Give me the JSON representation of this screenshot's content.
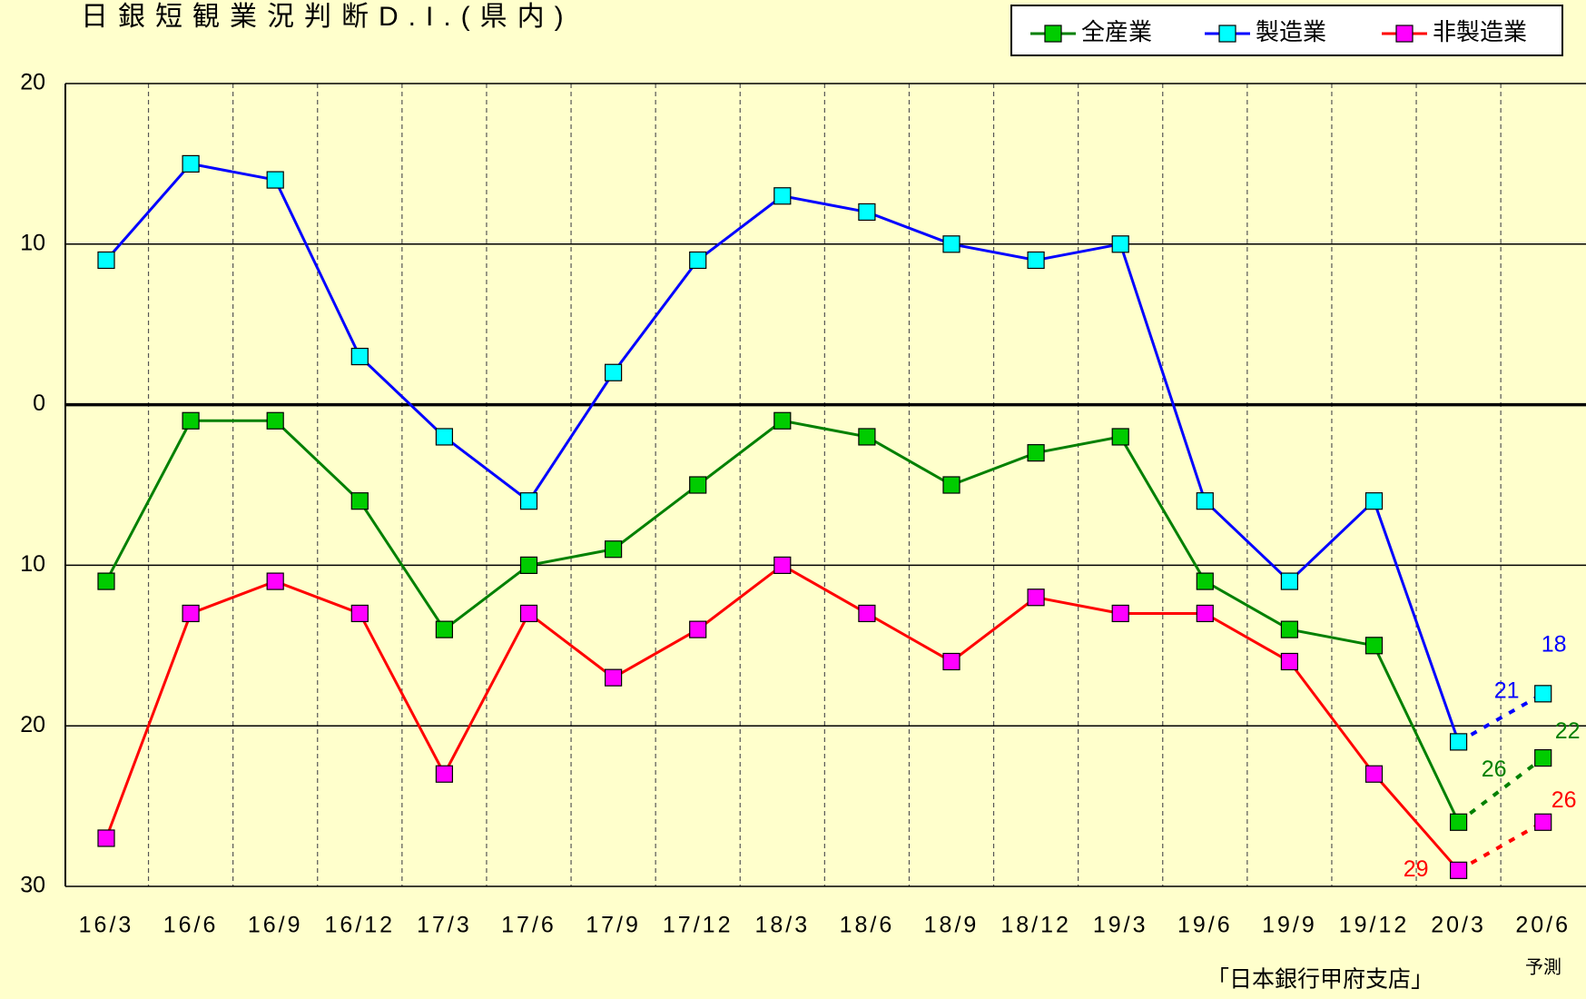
{
  "chart_data": {
    "type": "line",
    "title": "日銀短観業況判断D.I.(県内)",
    "source": "「日本銀行甲府支店」",
    "forecast_label": "予測",
    "dashed_last_segment": true,
    "categories": [
      "16/3",
      "16/6",
      "16/9",
      "16/12",
      "17/3",
      "17/6",
      "17/9",
      "17/12",
      "18/3",
      "18/6",
      "18/9",
      "18/12",
      "19/3",
      "19/6",
      "19/9",
      "19/12",
      "20/3",
      "20/6"
    ],
    "series": [
      {
        "name": "全産業",
        "color": "#008000",
        "marker_color": "#00cc00",
        "values": [
          -11,
          -1,
          -1,
          -6,
          -14,
          -10,
          -9,
          -5,
          -1,
          -2,
          -5,
          -3,
          -2,
          -11,
          -14,
          -15,
          -26,
          -22
        ],
        "value_labels": [
          null,
          null,
          null,
          null,
          null,
          null,
          null,
          null,
          null,
          null,
          null,
          null,
          null,
          null,
          null,
          null,
          "26",
          "22"
        ]
      },
      {
        "name": "製造業",
        "color": "#0000ff",
        "marker_color": "#00ffff",
        "values": [
          9,
          15,
          14,
          3,
          -2,
          -6,
          2,
          9,
          13,
          12,
          10,
          9,
          10,
          -6,
          -11,
          -6,
          -21,
          -18
        ],
        "value_labels": [
          null,
          null,
          null,
          null,
          null,
          null,
          null,
          null,
          null,
          null,
          null,
          null,
          null,
          null,
          null,
          null,
          "21",
          "18"
        ]
      },
      {
        "name": "非製造業",
        "color": "#ff0000",
        "marker_color": "#ff00ff",
        "values": [
          -27,
          -13,
          -11,
          -13,
          -23,
          -13,
          -17,
          -14,
          -10,
          -13,
          -16,
          -12,
          -13,
          -13,
          -16,
          -23,
          -29,
          -26
        ],
        "value_labels": [
          null,
          null,
          null,
          null,
          null,
          null,
          null,
          null,
          null,
          null,
          null,
          null,
          null,
          null,
          null,
          null,
          "29",
          "26"
        ]
      }
    ],
    "ylim": [
      -30,
      20
    ],
    "yticks": [
      {
        "value": -30,
        "label": "30"
      },
      {
        "value": -20,
        "label": "20"
      },
      {
        "value": -10,
        "label": "10"
      },
      0,
      10,
      20
    ],
    "grid": true,
    "legend": "top-right"
  }
}
